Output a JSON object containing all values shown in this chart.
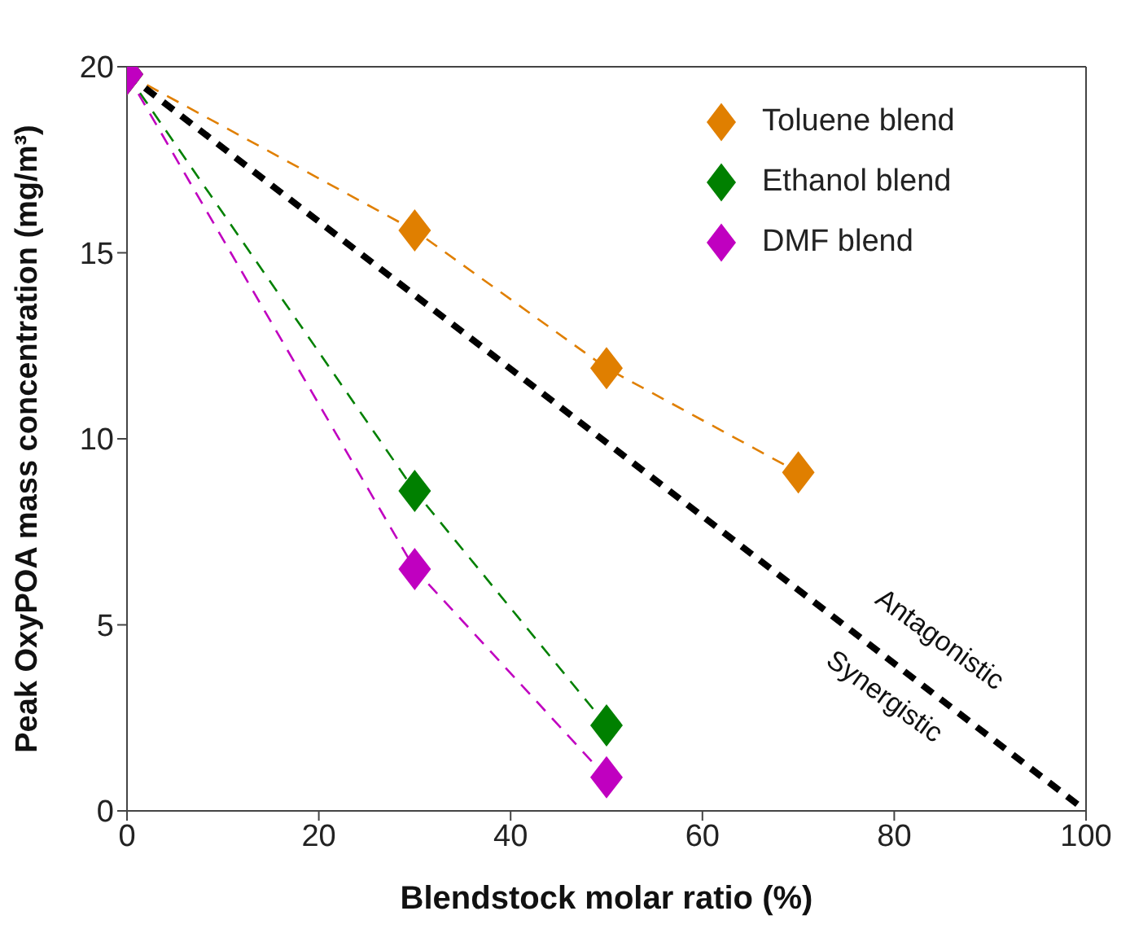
{
  "chart_data": {
    "type": "line",
    "xlabel": "Blendstock molar ratio (%)",
    "ylabel": "Peak OxyPOA mass concentration (mg/m³)",
    "xlim": [
      0,
      100
    ],
    "xticks": [
      0,
      20,
      40,
      60,
      80,
      100
    ],
    "ylim": [
      0,
      20
    ],
    "yticks": [
      0,
      5,
      10,
      15,
      20
    ],
    "marker": "diamond",
    "line_style": "dashed",
    "legend": "top right",
    "grid": false,
    "series": [
      {
        "name": "Toluene blend",
        "color": "#e07f00",
        "x": [
          0,
          30,
          50,
          70
        ],
        "values": [
          19.8,
          15.6,
          11.9,
          9.1
        ]
      },
      {
        "name": "Ethanol blend",
        "color": "#008000",
        "x": [
          0,
          30,
          50
        ],
        "values": [
          19.8,
          8.6,
          2.3
        ]
      },
      {
        "name": "DMF blend",
        "color": "#c000c0",
        "x": [
          0,
          30,
          50
        ],
        "values": [
          19.8,
          6.5,
          0.9
        ]
      },
      {
        "color": "#000000",
        "x": [
          0,
          100
        ],
        "values": [
          19.8,
          0
        ],
        "marker": "none"
      }
    ],
    "annotations": [
      "Antagonistic",
      "Synergistic"
    ]
  }
}
